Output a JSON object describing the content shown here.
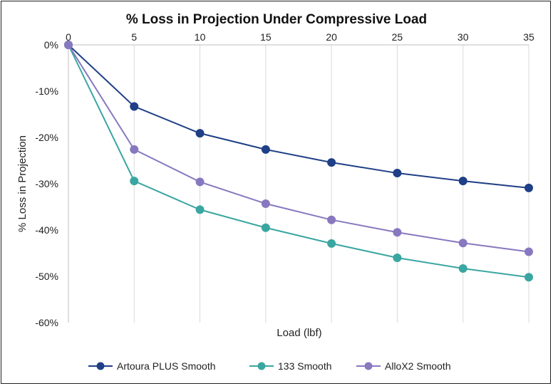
{
  "chart_data": {
    "type": "line",
    "title": "% Loss in Projection Under Compressive Load",
    "xlabel": "Load (lbf)",
    "ylabel": "% Loss in Projection",
    "x": [
      0,
      5,
      10,
      15,
      20,
      25,
      30,
      35
    ],
    "x_tick_labels": [
      "0",
      "5",
      "10",
      "15",
      "20",
      "25",
      "30",
      "35"
    ],
    "xlim": [
      0,
      35
    ],
    "ylim": [
      -60,
      0
    ],
    "y_ticks": [
      0,
      -10,
      -20,
      -30,
      -40,
      -50,
      -60
    ],
    "y_tick_labels": [
      "0%",
      "-10%",
      "-20%",
      "-30%",
      "-40%",
      "-50%",
      "-60%"
    ],
    "x_axis_position": "top",
    "grid": "vertical",
    "legend_position": "bottom",
    "series": [
      {
        "name": "Artoura PLUS Smooth",
        "color": "#1f3f86",
        "values": [
          0,
          -13.3,
          -19.1,
          -22.6,
          -25.4,
          -27.7,
          -29.4,
          -30.9
        ]
      },
      {
        "name": "133 Smooth",
        "color": "#3aa6a1",
        "values": [
          0,
          -29.4,
          -35.6,
          -39.5,
          -42.9,
          -46.0,
          -48.3,
          -50.2
        ]
      },
      {
        "name": "AlloX2 Smooth",
        "color": "#8878bf",
        "values": [
          0,
          -22.6,
          -29.6,
          -34.3,
          -37.8,
          -40.5,
          -42.8,
          -44.7
        ]
      }
    ]
  }
}
